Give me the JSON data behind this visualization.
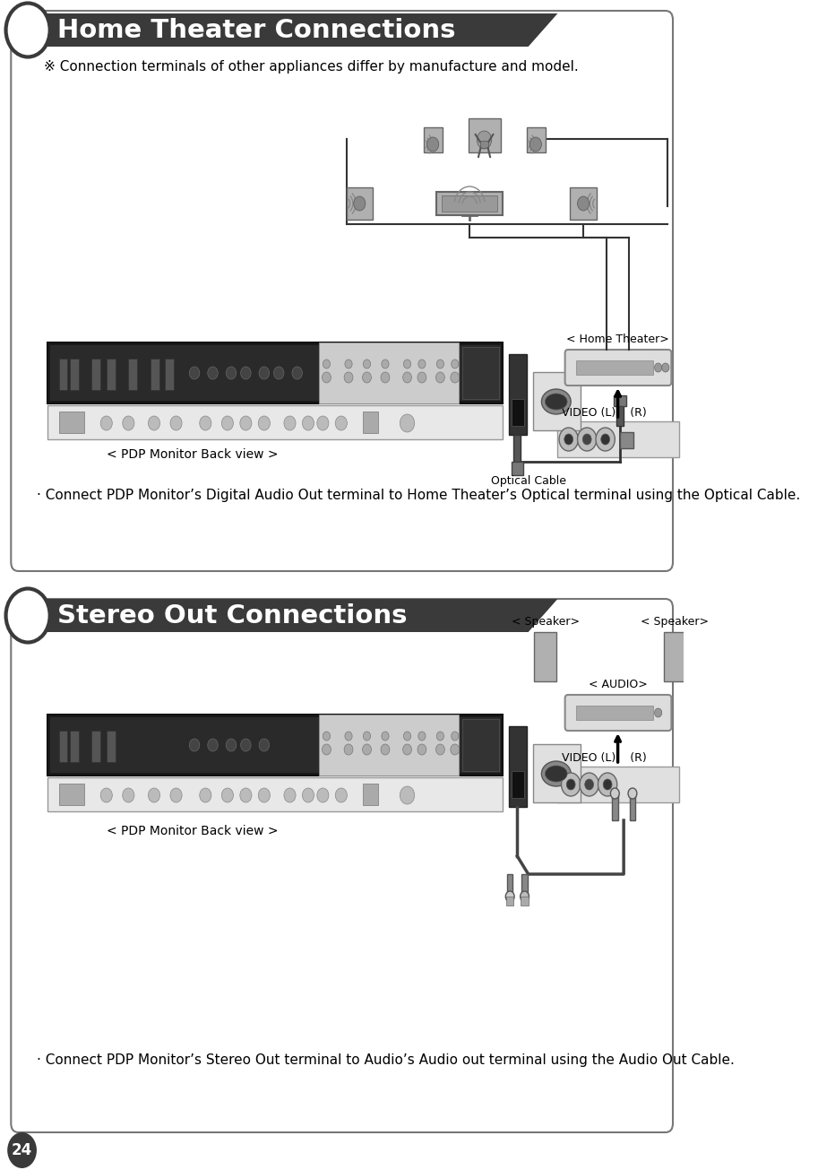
{
  "page_bg": "#ffffff",
  "header1_text": "Home Theater Connections",
  "header2_text": "Stereo Out Connections",
  "header_bg": "#3a3a3a",
  "header_text_color": "#ffffff",
  "section1_note": "※ Connection terminals of other appliances differ by manufacture and model.",
  "section1_desc": "· Connect PDP Monitor’s Digital Audio Out terminal to Home Theater’s Optical terminal using the Optical Cable.",
  "section2_desc": "· Connect PDP Monitor’s Stereo Out terminal to Audio’s Audio out terminal using the Audio Out Cable.",
  "label_pdp1": "< PDP Monitor Back view >",
  "label_pdp2": "< PDP Monitor Back view >",
  "label_home_theater": "< Home Theater>",
  "label_audio": "< AUDIO>",
  "label_speaker_left": "< Speaker>",
  "label_speaker_right": "< Speaker>",
  "label_video_l": "VIDEO (L)",
  "label_video_r": "(R)",
  "label_optical_cable": "Optical Cable",
  "section_border": "#777777",
  "page_number": "24",
  "dark_gray": "#3a3a3a",
  "mid_gray": "#888888",
  "light_gray": "#cccccc",
  "panel_gray": "#d8d8d8",
  "conn_bg": "#e0e0e0"
}
